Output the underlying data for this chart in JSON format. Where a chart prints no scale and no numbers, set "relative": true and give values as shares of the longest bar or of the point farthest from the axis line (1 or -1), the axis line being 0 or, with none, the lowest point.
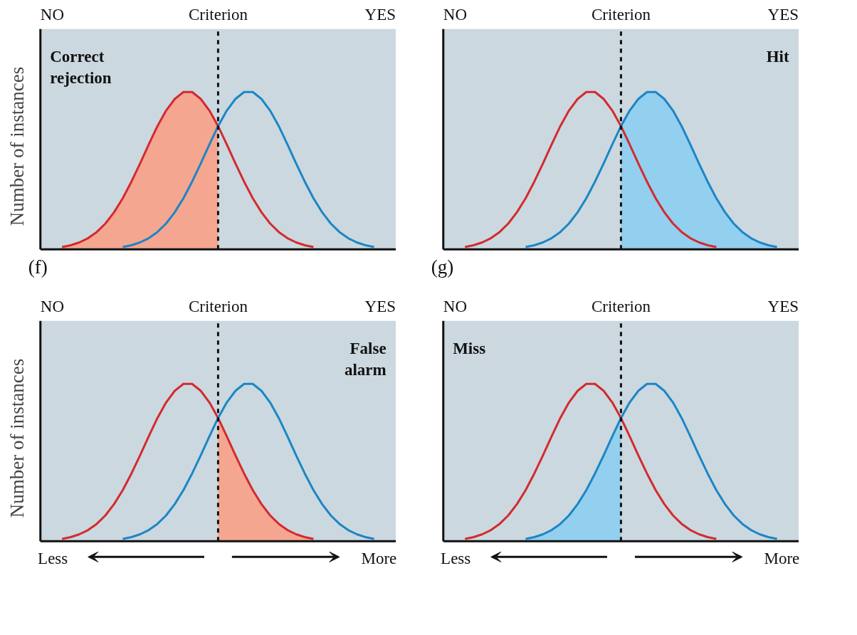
{
  "chart_data": [
    {
      "type": "line",
      "relative": true,
      "ylabel": "Number of instances",
      "line_style": "solid",
      "categories": [
        null,
        null,
        null,
        null,
        null,
        null,
        null,
        null,
        null,
        null,
        null,
        null,
        null,
        null,
        null,
        null,
        null,
        null,
        null,
        null,
        null,
        null,
        null,
        null,
        null,
        null,
        null,
        null,
        null,
        null,
        null,
        null,
        null,
        null,
        null,
        null,
        null,
        null,
        null,
        null,
        null
      ],
      "series": [
        {
          "type": "area",
          "color": "#f5a690",
          "values": [
            null,
            null,
            0.015,
            0.026,
            0.044,
            0.071,
            0.11,
            0.164,
            0.236,
            0.325,
            0.43,
            0.546,
            0.667,
            0.783,
            0.882,
            0.956,
            1,
            1,
            0.956,
            0.882,
            0.783,
            null,
            null,
            null,
            null,
            null,
            null,
            null,
            null,
            null,
            null,
            null,
            null,
            null,
            null,
            null,
            null,
            null,
            null,
            null,
            null
          ]
        },
        {
          "color": "#d42a2f",
          "values": [
            null,
            null,
            0.015,
            0.026,
            0.044,
            0.071,
            0.11,
            0.164,
            0.236,
            0.325,
            0.43,
            0.546,
            0.667,
            0.783,
            0.882,
            0.956,
            1,
            1,
            0.956,
            0.882,
            0.783,
            0.667,
            0.546,
            0.43,
            0.325,
            0.236,
            0.164,
            0.11,
            0.071,
            0.044,
            0.026,
            0.015,
            null,
            null,
            null,
            null,
            null,
            null,
            null,
            null,
            null
          ]
        },
        {
          "color": "#1b86c6",
          "values": [
            null,
            null,
            null,
            null,
            null,
            null,
            null,
            null,
            null,
            0.015,
            0.026,
            0.044,
            0.071,
            0.11,
            0.164,
            0.236,
            0.325,
            0.43,
            0.546,
            0.667,
            0.783,
            0.882,
            0.956,
            1,
            1,
            0.956,
            0.882,
            0.783,
            0.667,
            0.546,
            0.43,
            0.325,
            0.236,
            0.164,
            0.11,
            0.071,
            0.044,
            0.026,
            0.015,
            null,
            null
          ]
        }
      ],
      "annotations": [
        "NO",
        "Criterion",
        "YES",
        "Correct\nrejection",
        "(f)"
      ]
    },
    {
      "type": "line",
      "relative": true,
      "line_style": "solid",
      "categories": [
        null,
        null,
        null,
        null,
        null,
        null,
        null,
        null,
        null,
        null,
        null,
        null,
        null,
        null,
        null,
        null,
        null,
        null,
        null,
        null,
        null,
        null,
        null,
        null,
        null,
        null,
        null,
        null,
        null,
        null,
        null,
        null,
        null,
        null,
        null,
        null,
        null,
        null,
        null,
        null,
        null
      ],
      "series": [
        {
          "type": "area",
          "color": "#93cfee",
          "values": [
            null,
            null,
            null,
            null,
            null,
            null,
            null,
            null,
            null,
            null,
            null,
            null,
            null,
            null,
            null,
            null,
            null,
            null,
            null,
            null,
            0.783,
            0.882,
            0.956,
            1,
            1,
            0.956,
            0.882,
            0.783,
            0.667,
            0.546,
            0.43,
            0.325,
            0.236,
            0.164,
            0.11,
            0.071,
            0.044,
            0.026,
            0.015,
            null,
            null
          ]
        },
        {
          "color": "#d42a2f",
          "values": [
            null,
            null,
            0.015,
            0.026,
            0.044,
            0.071,
            0.11,
            0.164,
            0.236,
            0.325,
            0.43,
            0.546,
            0.667,
            0.783,
            0.882,
            0.956,
            1,
            1,
            0.956,
            0.882,
            0.783,
            0.667,
            0.546,
            0.43,
            0.325,
            0.236,
            0.164,
            0.11,
            0.071,
            0.044,
            0.026,
            0.015,
            null,
            null,
            null,
            null,
            null,
            null,
            null,
            null,
            null
          ]
        },
        {
          "color": "#1b86c6",
          "values": [
            null,
            null,
            null,
            null,
            null,
            null,
            null,
            null,
            null,
            0.015,
            0.026,
            0.044,
            0.071,
            0.11,
            0.164,
            0.236,
            0.325,
            0.43,
            0.546,
            0.667,
            0.783,
            0.882,
            0.956,
            1,
            1,
            0.956,
            0.882,
            0.783,
            0.667,
            0.546,
            0.43,
            0.325,
            0.236,
            0.164,
            0.11,
            0.071,
            0.044,
            0.026,
            0.015,
            null,
            null
          ]
        }
      ],
      "annotations": [
        "NO",
        "Criterion",
        "YES",
        "Hit",
        "(g)"
      ]
    },
    {
      "type": "line",
      "relative": true,
      "ylabel": "Number of instances",
      "line_style": "solid",
      "categories": [
        null,
        null,
        null,
        null,
        null,
        null,
        null,
        null,
        null,
        null,
        null,
        null,
        null,
        null,
        null,
        null,
        null,
        null,
        null,
        null,
        null,
        null,
        null,
        null,
        null,
        null,
        null,
        null,
        null,
        null,
        null,
        null,
        null,
        null,
        null,
        null,
        null,
        null,
        null,
        null,
        null
      ],
      "series": [
        {
          "type": "area",
          "color": "#f5a690",
          "values": [
            null,
            null,
            null,
            null,
            null,
            null,
            null,
            null,
            null,
            null,
            null,
            null,
            null,
            null,
            null,
            null,
            null,
            null,
            null,
            null,
            0.783,
            0.667,
            0.546,
            0.43,
            0.325,
            0.236,
            0.164,
            0.11,
            0.071,
            0.044,
            0.026,
            0.015,
            null,
            null,
            null,
            null,
            null,
            null,
            null,
            null,
            null
          ]
        },
        {
          "color": "#d42a2f",
          "values": [
            null,
            null,
            0.015,
            0.026,
            0.044,
            0.071,
            0.11,
            0.164,
            0.236,
            0.325,
            0.43,
            0.546,
            0.667,
            0.783,
            0.882,
            0.956,
            1,
            1,
            0.956,
            0.882,
            0.783,
            0.667,
            0.546,
            0.43,
            0.325,
            0.236,
            0.164,
            0.11,
            0.071,
            0.044,
            0.026,
            0.015,
            null,
            null,
            null,
            null,
            null,
            null,
            null,
            null,
            null
          ]
        },
        {
          "color": "#1b86c6",
          "values": [
            null,
            null,
            null,
            null,
            null,
            null,
            null,
            null,
            null,
            0.015,
            0.026,
            0.044,
            0.071,
            0.11,
            0.164,
            0.236,
            0.325,
            0.43,
            0.546,
            0.667,
            0.783,
            0.882,
            0.956,
            1,
            1,
            0.956,
            0.882,
            0.783,
            0.667,
            0.546,
            0.43,
            0.325,
            0.236,
            0.164,
            0.11,
            0.071,
            0.044,
            0.026,
            0.015,
            null,
            null
          ]
        }
      ],
      "annotations": [
        "NO",
        "Criterion",
        "YES",
        "False\nalarm",
        "Less",
        "More"
      ]
    },
    {
      "type": "line",
      "relative": true,
      "line_style": "solid",
      "categories": [
        null,
        null,
        null,
        null,
        null,
        null,
        null,
        null,
        null,
        null,
        null,
        null,
        null,
        null,
        null,
        null,
        null,
        null,
        null,
        null,
        null,
        null,
        null,
        null,
        null,
        null,
        null,
        null,
        null,
        null,
        null,
        null,
        null,
        null,
        null,
        null,
        null,
        null,
        null,
        null,
        null
      ],
      "series": [
        {
          "type": "area",
          "color": "#93cfee",
          "values": [
            null,
            null,
            null,
            null,
            null,
            null,
            null,
            null,
            null,
            0.015,
            0.026,
            0.044,
            0.071,
            0.11,
            0.164,
            0.236,
            0.325,
            0.43,
            0.546,
            0.667,
            0.783,
            null,
            null,
            null,
            null,
            null,
            null,
            null,
            null,
            null,
            null,
            null,
            null,
            null,
            null,
            null,
            null,
            null,
            null,
            null,
            null
          ]
        },
        {
          "color": "#d42a2f",
          "values": [
            null,
            null,
            0.015,
            0.026,
            0.044,
            0.071,
            0.11,
            0.164,
            0.236,
            0.325,
            0.43,
            0.546,
            0.667,
            0.783,
            0.882,
            0.956,
            1,
            1,
            0.956,
            0.882,
            0.783,
            0.667,
            0.546,
            0.43,
            0.325,
            0.236,
            0.164,
            0.11,
            0.071,
            0.044,
            0.026,
            0.015,
            null,
            null,
            null,
            null,
            null,
            null,
            null,
            null,
            null
          ]
        },
        {
          "color": "#1b86c6",
          "values": [
            null,
            null,
            null,
            null,
            null,
            null,
            null,
            null,
            null,
            0.015,
            0.026,
            0.044,
            0.071,
            0.11,
            0.164,
            0.236,
            0.325,
            0.43,
            0.546,
            0.667,
            0.783,
            0.882,
            0.956,
            1,
            1,
            0.956,
            0.882,
            0.783,
            0.667,
            0.546,
            0.43,
            0.325,
            0.236,
            0.164,
            0.11,
            0.071,
            0.044,
            0.026,
            0.015,
            null,
            null
          ]
        }
      ],
      "annotations": [
        "NO",
        "Criterion",
        "YES",
        "Miss",
        "Less",
        "More"
      ]
    }
  ]
}
